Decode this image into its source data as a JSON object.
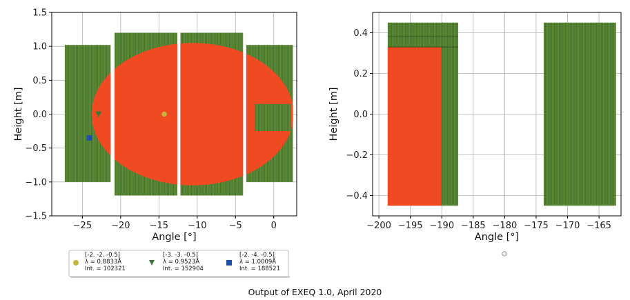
{
  "chart_data": [
    {
      "type": "area",
      "xlabel": "Angle [°]",
      "ylabel": "Height [m]",
      "xlim": [
        -29,
        3
      ],
      "ylim": [
        -1.5,
        1.5
      ],
      "xticks": [
        -25,
        -20,
        -15,
        -10,
        -5,
        0
      ],
      "yticks": [
        -1.5,
        -1.0,
        -0.5,
        0.0,
        0.5,
        1.0,
        1.5
      ],
      "grid": true,
      "detector_color": "#5e8c3a",
      "beam_color": "#f04a23",
      "detector_panels": [
        {
          "x0": -27.3,
          "x1": -21.3,
          "y0": -1.0,
          "y1": 1.02
        },
        {
          "x0": -20.8,
          "x1": -12.6,
          "y0": -1.2,
          "y1": 1.2
        },
        {
          "x0": -12.2,
          "x1": -4.0,
          "y0": -1.2,
          "y1": 1.2
        },
        {
          "x0": -3.6,
          "x1": 2.5,
          "y0": -1.0,
          "y1": 1.02
        }
      ],
      "beam_ellipse": {
        "cx": -10.6,
        "cy": 0.0,
        "rx": 13.2,
        "ry": 1.05
      },
      "beam_clip": {
        "x0": -29,
        "x1": 2.5
      },
      "panel_gaps": [
        {
          "x0": -21.3,
          "x1": -20.8
        },
        {
          "x0": -12.6,
          "x1": -12.2
        },
        {
          "x0": -4.0,
          "x1": -3.6
        }
      ],
      "overlay_rect": {
        "x0": -2.5,
        "x1": 2.2,
        "y0": -0.25,
        "y1": 0.15
      },
      "markers": [
        {
          "shape": "circle",
          "color": "#c8b43c",
          "x": -14.3,
          "y": 0.0
        },
        {
          "shape": "triangle",
          "color": "#3d7a35",
          "x": -22.9,
          "y": 0.0
        },
        {
          "shape": "square",
          "color": "#1f4fa8",
          "x": -24.1,
          "y": -0.35
        }
      ]
    },
    {
      "type": "area",
      "xlabel": "Angle [°]",
      "ylabel": "Height [m]",
      "xlim": [
        -201,
        -161.5
      ],
      "ylim": [
        -0.5,
        0.5
      ],
      "xticks": [
        -200,
        -195,
        -190,
        -185,
        -180,
        -175,
        -170,
        -165
      ],
      "yticks": [
        -0.4,
        -0.2,
        0.0,
        0.2,
        0.4
      ],
      "grid": true,
      "detector_color": "#5e8c3a",
      "beam_color": "#f04a23",
      "detector_panels": [
        {
          "x0": -198.6,
          "x1": -187.4,
          "y0": -0.45,
          "y1": 0.45
        },
        {
          "x0": -173.8,
          "x1": -162.3,
          "y0": -0.45,
          "y1": 0.45
        }
      ],
      "beam_rects": [
        {
          "x0": -198.6,
          "x1": -190.1,
          "y0": -0.45,
          "y1": 0.33
        }
      ],
      "band_lines": [
        0.38,
        0.33
      ]
    }
  ],
  "legend": {
    "entries": [
      {
        "line1": "[-2.  -2.  -0.5]",
        "line2": "λ = 0.8833Å",
        "line3": "Int. = 102321",
        "marker": "circle",
        "color": "#c8b43c"
      },
      {
        "line1": "[-3.  -3.  -0.5]",
        "line2": "λ = 0.9523Å",
        "line3": "Int. = 152904",
        "marker": "triangle",
        "color": "#3d7a35"
      },
      {
        "line1": "[-2.  -4.  -0.5]",
        "line2": "λ = 1.0009Å",
        "line3": "Int. = 188521",
        "marker": "square",
        "color": "#1f4fa8"
      }
    ]
  },
  "footer": "Output of EXEQ 1.0, April 2020"
}
